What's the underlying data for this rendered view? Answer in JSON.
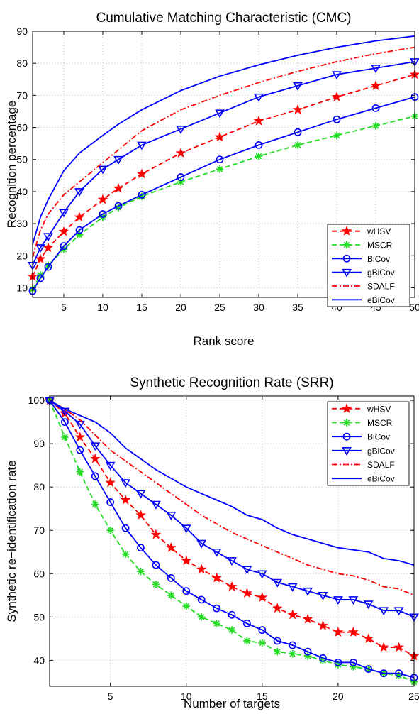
{
  "colors": {
    "wHSV": "#ff0000",
    "MSCR": "#22dd22",
    "BiCov": "#0000ff",
    "gBiCov": "#0000ff",
    "SDALF": "#ff0000",
    "eBiCov": "#0000ff",
    "grid": "#b0b0b0",
    "axes": "#000000"
  },
  "chart_data": [
    {
      "type": "line",
      "title": "Cumulative Matching Characteristic (CMC)",
      "xlabel": "Rank score",
      "ylabel": "Recognition percentage",
      "xlim": [
        1,
        50
      ],
      "ylim": [
        7,
        90
      ],
      "xticks": [
        5,
        10,
        15,
        20,
        25,
        30,
        35,
        40,
        45,
        50
      ],
      "yticks": [
        10,
        20,
        30,
        40,
        50,
        60,
        70,
        80,
        90
      ],
      "grid": "dotted",
      "legend_position": "bottom-right",
      "series": [
        {
          "name": "wHSV",
          "style": "dashed",
          "marker": "star",
          "color_key": "wHSV",
          "points": [
            [
              1,
              13.5
            ],
            [
              2,
              19
            ],
            [
              3,
              22.5
            ],
            [
              5,
              27.5
            ],
            [
              7,
              32
            ],
            [
              10,
              37.5
            ],
            [
              12,
              41
            ],
            [
              15,
              45.5
            ],
            [
              20,
              52
            ],
            [
              25,
              57
            ],
            [
              30,
              62
            ],
            [
              35,
              65.5
            ],
            [
              40,
              69.5
            ],
            [
              45,
              73
            ],
            [
              50,
              76.5
            ]
          ]
        },
        {
          "name": "MSCR",
          "style": "dashed",
          "marker": "asterisk",
          "color_key": "MSCR",
          "points": [
            [
              1,
              9.5
            ],
            [
              2,
              14
            ],
            [
              3,
              17
            ],
            [
              5,
              22
            ],
            [
              7,
              26.5
            ],
            [
              10,
              32
            ],
            [
              12,
              35
            ],
            [
              15,
              38.5
            ],
            [
              20,
              43
            ],
            [
              25,
              47
            ],
            [
              30,
              51
            ],
            [
              35,
              54.5
            ],
            [
              40,
              57.5
            ],
            [
              45,
              60.5
            ],
            [
              50,
              63.5
            ]
          ]
        },
        {
          "name": "BiCov",
          "style": "solid",
          "marker": "circle",
          "color_key": "BiCov",
          "points": [
            [
              1,
              9
            ],
            [
              2,
              13
            ],
            [
              3,
              16.5
            ],
            [
              5,
              23
            ],
            [
              7,
              28
            ],
            [
              10,
              33
            ],
            [
              12,
              35.5
            ],
            [
              15,
              39
            ],
            [
              20,
              44.5
            ],
            [
              25,
              50
            ],
            [
              30,
              54.5
            ],
            [
              35,
              58.5
            ],
            [
              40,
              62.5
            ],
            [
              45,
              66
            ],
            [
              50,
              69.5
            ]
          ]
        },
        {
          "name": "gBiCov",
          "style": "solid",
          "marker": "triangle-down",
          "color_key": "gBiCov",
          "points": [
            [
              1,
              17
            ],
            [
              2,
              22.5
            ],
            [
              3,
              26
            ],
            [
              5,
              33.5
            ],
            [
              7,
              40
            ],
            [
              10,
              47
            ],
            [
              12,
              50
            ],
            [
              15,
              54.5
            ],
            [
              20,
              59.5
            ],
            [
              25,
              64.5
            ],
            [
              30,
              69.5
            ],
            [
              35,
              73
            ],
            [
              40,
              76.5
            ],
            [
              45,
              78.5
            ],
            [
              50,
              80.5
            ]
          ]
        },
        {
          "name": "SDALF",
          "style": "dashdot",
          "marker": "none",
          "color_key": "SDALF",
          "points": [
            [
              1,
              19.5
            ],
            [
              2,
              28
            ],
            [
              3,
              33
            ],
            [
              5,
              39
            ],
            [
              7,
              43
            ],
            [
              10,
              49
            ],
            [
              12,
              53
            ],
            [
              15,
              59
            ],
            [
              20,
              65.5
            ],
            [
              25,
              70
            ],
            [
              30,
              74
            ],
            [
              35,
              77.5
            ],
            [
              40,
              80.5
            ],
            [
              45,
              83
            ],
            [
              50,
              85
            ]
          ]
        },
        {
          "name": "eBiCov",
          "style": "solid",
          "marker": "none",
          "color_key": "eBiCov",
          "points": [
            [
              1,
              23.5
            ],
            [
              2,
              32
            ],
            [
              3,
              37.5
            ],
            [
              5,
              46.5
            ],
            [
              7,
              52
            ],
            [
              10,
              57.5
            ],
            [
              12,
              61
            ],
            [
              15,
              65.5
            ],
            [
              20,
              71.5
            ],
            [
              25,
              76
            ],
            [
              30,
              79.5
            ],
            [
              35,
              82.5
            ],
            [
              40,
              85
            ],
            [
              45,
              87
            ],
            [
              50,
              88.5
            ]
          ]
        }
      ]
    },
    {
      "type": "line",
      "title": "Synthetic Recognition Rate (SRR)",
      "xlabel": "Number of targets",
      "ylabel": "Synthetic re−identification rate",
      "xlim": [
        1,
        25
      ],
      "ylim": [
        34,
        101
      ],
      "xticks": [
        5,
        10,
        15,
        20,
        25
      ],
      "yticks": [
        40,
        50,
        60,
        70,
        80,
        90,
        100
      ],
      "grid": "dotted",
      "legend_position": "top-right",
      "series": [
        {
          "name": "wHSV",
          "style": "dashed",
          "marker": "star",
          "color_key": "wHSV",
          "points": [
            [
              1,
              100
            ],
            [
              2,
              97
            ],
            [
              3,
              91.5
            ],
            [
              4,
              86.5
            ],
            [
              5,
              81
            ],
            [
              6,
              77
            ],
            [
              7,
              73.5
            ],
            [
              8,
              69
            ],
            [
              9,
              66
            ],
            [
              10,
              63
            ],
            [
              11,
              61
            ],
            [
              12,
              59
            ],
            [
              13,
              57
            ],
            [
              14,
              55.5
            ],
            [
              15,
              54.5
            ],
            [
              16,
              52
            ],
            [
              17,
              50.5
            ],
            [
              18,
              49.5
            ],
            [
              19,
              48
            ],
            [
              20,
              46.5
            ],
            [
              21,
              46.5
            ],
            [
              22,
              45
            ],
            [
              23,
              43
            ],
            [
              24,
              43
            ],
            [
              25,
              41
            ]
          ]
        },
        {
          "name": "MSCR",
          "style": "dashed",
          "marker": "asterisk",
          "color_key": "MSCR",
          "points": [
            [
              1,
              100
            ],
            [
              2,
              91.5
            ],
            [
              3,
              83.5
            ],
            [
              4,
              76
            ],
            [
              5,
              70
            ],
            [
              6,
              64.5
            ],
            [
              7,
              60.5
            ],
            [
              8,
              57.5
            ],
            [
              9,
              55
            ],
            [
              10,
              52.5
            ],
            [
              11,
              50
            ],
            [
              12,
              48.5
            ],
            [
              13,
              47
            ],
            [
              14,
              44.5
            ],
            [
              15,
              44
            ],
            [
              16,
              42
            ],
            [
              17,
              41.5
            ],
            [
              18,
              41
            ],
            [
              19,
              40
            ],
            [
              20,
              39
            ],
            [
              21,
              38.5
            ],
            [
              22,
              38
            ],
            [
              23,
              37
            ],
            [
              24,
              36.5
            ],
            [
              25,
              35
            ]
          ]
        },
        {
          "name": "BiCov",
          "style": "solid",
          "marker": "circle",
          "color_key": "BiCov",
          "points": [
            [
              1,
              100
            ],
            [
              2,
              95
            ],
            [
              3,
              88.5
            ],
            [
              4,
              82.5
            ],
            [
              5,
              76.5
            ],
            [
              6,
              70.5
            ],
            [
              7,
              66
            ],
            [
              8,
              62
            ],
            [
              9,
              59
            ],
            [
              10,
              56
            ],
            [
              11,
              54
            ],
            [
              12,
              52
            ],
            [
              13,
              50.5
            ],
            [
              14,
              48.5
            ],
            [
              15,
              47
            ],
            [
              16,
              44.5
            ],
            [
              17,
              43.5
            ],
            [
              18,
              42
            ],
            [
              19,
              40.5
            ],
            [
              20,
              39.5
            ],
            [
              21,
              39.5
            ],
            [
              22,
              38
            ],
            [
              23,
              37
            ],
            [
              24,
              37
            ],
            [
              25,
              36
            ]
          ]
        },
        {
          "name": "gBiCov",
          "style": "solid",
          "marker": "triangle-down",
          "color_key": "gBiCov",
          "points": [
            [
              1,
              100
            ],
            [
              2,
              97.5
            ],
            [
              3,
              94.5
            ],
            [
              4,
              89.5
            ],
            [
              5,
              85
            ],
            [
              6,
              81
            ],
            [
              7,
              78.5
            ],
            [
              8,
              76
            ],
            [
              9,
              73.5
            ],
            [
              10,
              70.5
            ],
            [
              11,
              67
            ],
            [
              12,
              65
            ],
            [
              13,
              63
            ],
            [
              14,
              61
            ],
            [
              15,
              60
            ],
            [
              16,
              58
            ],
            [
              17,
              57
            ],
            [
              18,
              56
            ],
            [
              19,
              55
            ],
            [
              20,
              54
            ],
            [
              21,
              54
            ],
            [
              22,
              53
            ],
            [
              23,
              51.5
            ],
            [
              24,
              51.5
            ],
            [
              25,
              50
            ]
          ]
        },
        {
          "name": "SDALF",
          "style": "dashdot",
          "marker": "none",
          "color_key": "SDALF",
          "points": [
            [
              1,
              100
            ],
            [
              2,
              98
            ],
            [
              3,
              95.5
            ],
            [
              4,
              92
            ],
            [
              5,
              88.5
            ],
            [
              6,
              86
            ],
            [
              7,
              83.5
            ],
            [
              8,
              81
            ],
            [
              9,
              78.5
            ],
            [
              10,
              76
            ],
            [
              11,
              73.5
            ],
            [
              12,
              71.5
            ],
            [
              13,
              69.5
            ],
            [
              14,
              68
            ],
            [
              15,
              66.5
            ],
            [
              16,
              65
            ],
            [
              17,
              63.5
            ],
            [
              18,
              62
            ],
            [
              19,
              61
            ],
            [
              20,
              60
            ],
            [
              21,
              59.5
            ],
            [
              22,
              58.5
            ],
            [
              23,
              57
            ],
            [
              24,
              56.5
            ],
            [
              25,
              55
            ]
          ]
        },
        {
          "name": "eBiCov",
          "style": "solid",
          "marker": "none",
          "color_key": "eBiCov",
          "points": [
            [
              1,
              100
            ],
            [
              2,
              98
            ],
            [
              3,
              96.5
            ],
            [
              4,
              95
            ],
            [
              5,
              92.5
            ],
            [
              6,
              89
            ],
            [
              7,
              86.5
            ],
            [
              8,
              84
            ],
            [
              9,
              82
            ],
            [
              10,
              80
            ],
            [
              11,
              78.5
            ],
            [
              12,
              77
            ],
            [
              13,
              75.5
            ],
            [
              14,
              73.5
            ],
            [
              15,
              72.5
            ],
            [
              16,
              70.5
            ],
            [
              17,
              69
            ],
            [
              18,
              68
            ],
            [
              19,
              67
            ],
            [
              20,
              66
            ],
            [
              21,
              65.5
            ],
            [
              22,
              65
            ],
            [
              23,
              63.5
            ],
            [
              24,
              63
            ],
            [
              25,
              62
            ]
          ]
        }
      ]
    }
  ]
}
